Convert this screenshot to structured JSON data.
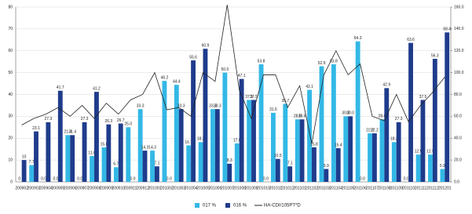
{
  "chart_data": {
    "type": "bar-line",
    "categories": [
      "200902",
      "200903",
      "200904",
      "200905",
      "200906",
      "200907",
      "200908",
      "200909",
      "200910",
      "200911",
      "200912",
      "201001",
      "201002",
      "201003",
      "201004",
      "201005",
      "201006",
      "201007",
      "201008",
      "201009",
      "201010",
      "201011",
      "201012",
      "201101",
      "201102",
      "201103",
      "201104",
      "201105",
      "201106",
      "201107",
      "201108",
      "201109",
      "201110",
      "201111",
      "201112",
      "201201"
    ],
    "series": [
      {
        "name": "017 %",
        "color": "#33b8e6",
        "kind": "bar",
        "values": [
          0,
          7.7,
          0,
          0,
          21.4,
          0,
          11.8,
          15.8,
          6.7,
          25,
          33.3,
          14.3,
          46.2,
          44.4,
          16.7,
          18.2,
          33.3,
          50,
          17.6,
          37.5,
          53.8,
          31.6,
          35.7,
          28.6,
          42.1,
          52.9,
          53.8,
          30,
          64.3,
          22.2,
          28.6,
          18.2,
          0,
          12.5,
          12.5,
          5.9
        ],
        "value_labels": [
          "0",
          "7.7",
          "0.0",
          "0.0",
          "21.4",
          "0.0",
          "11.8",
          "15.8",
          "6.7",
          "25.0",
          "33.3",
          "14.3",
          "46.2",
          "44.4",
          "16.7",
          "18.2",
          "33.3",
          "50.0",
          "17.6",
          "37.5",
          "53.8",
          "31.6",
          "35.7",
          "28.6",
          "42.1",
          "52.9",
          "53.8",
          "30.0",
          "64.3",
          "22.2",
          "28.6",
          "18.2",
          "0.0",
          "12.5",
          "12.5",
          "5.9"
        ]
      },
      {
        "name": "016 %",
        "color": "#1f3c8c",
        "kind": "bar",
        "values": [
          10,
          23.1,
          27.3,
          41.7,
          21.4,
          27.3,
          41.2,
          26.3,
          26.7,
          0,
          14.3,
          7.1,
          0,
          33.3,
          55.6,
          60.9,
          33.3,
          8.3,
          47.1,
          37.5,
          0,
          10.5,
          7.1,
          28.6,
          15.8,
          5.9,
          15.4,
          30,
          0,
          22.2,
          42.9,
          27.3,
          63.6,
          37.5,
          56.3,
          68.4
        ],
        "value_labels": [
          "10",
          "23.1",
          "27.3",
          "41.7",
          "21.4",
          "27.3",
          "41.2",
          "26.3",
          "26.7",
          "0.0",
          "14.3",
          "7.1",
          "0.0",
          "33.3",
          "55.6",
          "60.9",
          "33.3",
          "8.3",
          "47.1",
          "37.5",
          "0.0",
          "10.5",
          "7.1",
          "28.6",
          "15.8",
          "5.9",
          "15.4",
          "30.0",
          "0.0",
          "22.2",
          "42.9",
          "27.3",
          "63.6",
          "37.5",
          "56.3",
          "68.4"
        ]
      },
      {
        "name": "HA-CDI/105PT*D",
        "color": "#222222",
        "kind": "line",
        "axis": "y2",
        "values": [
          52,
          58,
          62,
          68,
          60,
          70,
          58,
          72,
          62,
          75,
          80,
          100,
          66,
          68,
          60,
          100,
          92,
          162,
          84,
          58,
          98,
          98,
          68,
          88,
          35,
          98,
          120,
          98,
          108,
          60,
          56,
          80,
          55,
          70,
          82,
          96
        ]
      }
    ],
    "ylim": [
      0,
      80
    ],
    "yticks": [
      0,
      10,
      20,
      30,
      40,
      50,
      60,
      70,
      80
    ],
    "y2lim": [
      0,
      160
    ],
    "y2ticks": [
      {
        "value": 0,
        "label": "0.0"
      },
      {
        "value": 20,
        "label": "20.0"
      },
      {
        "value": 40,
        "label": "40.0"
      },
      {
        "value": 60,
        "label": "60.0"
      },
      {
        "value": 80,
        "label": "80.0"
      },
      {
        "value": 100,
        "label": "100.0"
      },
      {
        "value": 120,
        "label": "120.0"
      },
      {
        "value": 140,
        "label": "140.0"
      },
      {
        "value": 160,
        "label": "160.0"
      }
    ],
    "grid": true,
    "legend": "bottom"
  }
}
